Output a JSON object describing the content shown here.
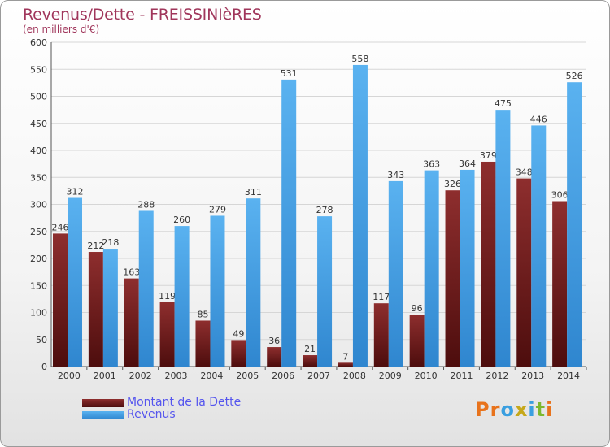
{
  "header": {
    "title": "Revenus/Dette - FREISSINIèRES",
    "subtitle": "(en milliers d'€)"
  },
  "legend": {
    "items": [
      {
        "label": "Montant de la Dette",
        "color": "#7a1f1f"
      },
      {
        "label": "Revenus",
        "color": "#4aa3e8"
      }
    ]
  },
  "logo": {
    "text": "Proxiti"
  },
  "colors": {
    "dette_light": "#8e2e2e",
    "dette_dark": "#4d0d0d",
    "revenus_light": "#5ab2f0",
    "revenus_dark": "#2f86cf",
    "axis_text": "#333333"
  },
  "chart_data": {
    "type": "bar",
    "categories": [
      "2000",
      "2001",
      "2002",
      "2003",
      "2004",
      "2005",
      "2006",
      "2007",
      "2008",
      "2009",
      "2010",
      "2011",
      "2012",
      "2013",
      "2014"
    ],
    "series": [
      {
        "name": "Montant de la Dette",
        "values": [
          246,
          212,
          163,
          119,
          85,
          49,
          36,
          21,
          7,
          117,
          96,
          326,
          379,
          348,
          306
        ]
      },
      {
        "name": "Revenus",
        "values": [
          312,
          218,
          288,
          260,
          279,
          311,
          531,
          278,
          558,
          343,
          363,
          364,
          475,
          446,
          526
        ]
      }
    ],
    "ylim": [
      0,
      600
    ],
    "yticks": [
      0,
      50,
      100,
      150,
      200,
      250,
      300,
      350,
      400,
      450,
      500,
      550,
      600
    ],
    "grid": true,
    "legend_position": "bottom-left"
  }
}
